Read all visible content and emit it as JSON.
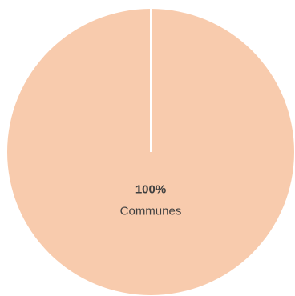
{
  "chart_data": {
    "type": "pie",
    "categories": [
      "Communes"
    ],
    "values": [
      100
    ],
    "value_labels": [
      "100%"
    ],
    "colors": [
      "#f8cbad"
    ]
  }
}
